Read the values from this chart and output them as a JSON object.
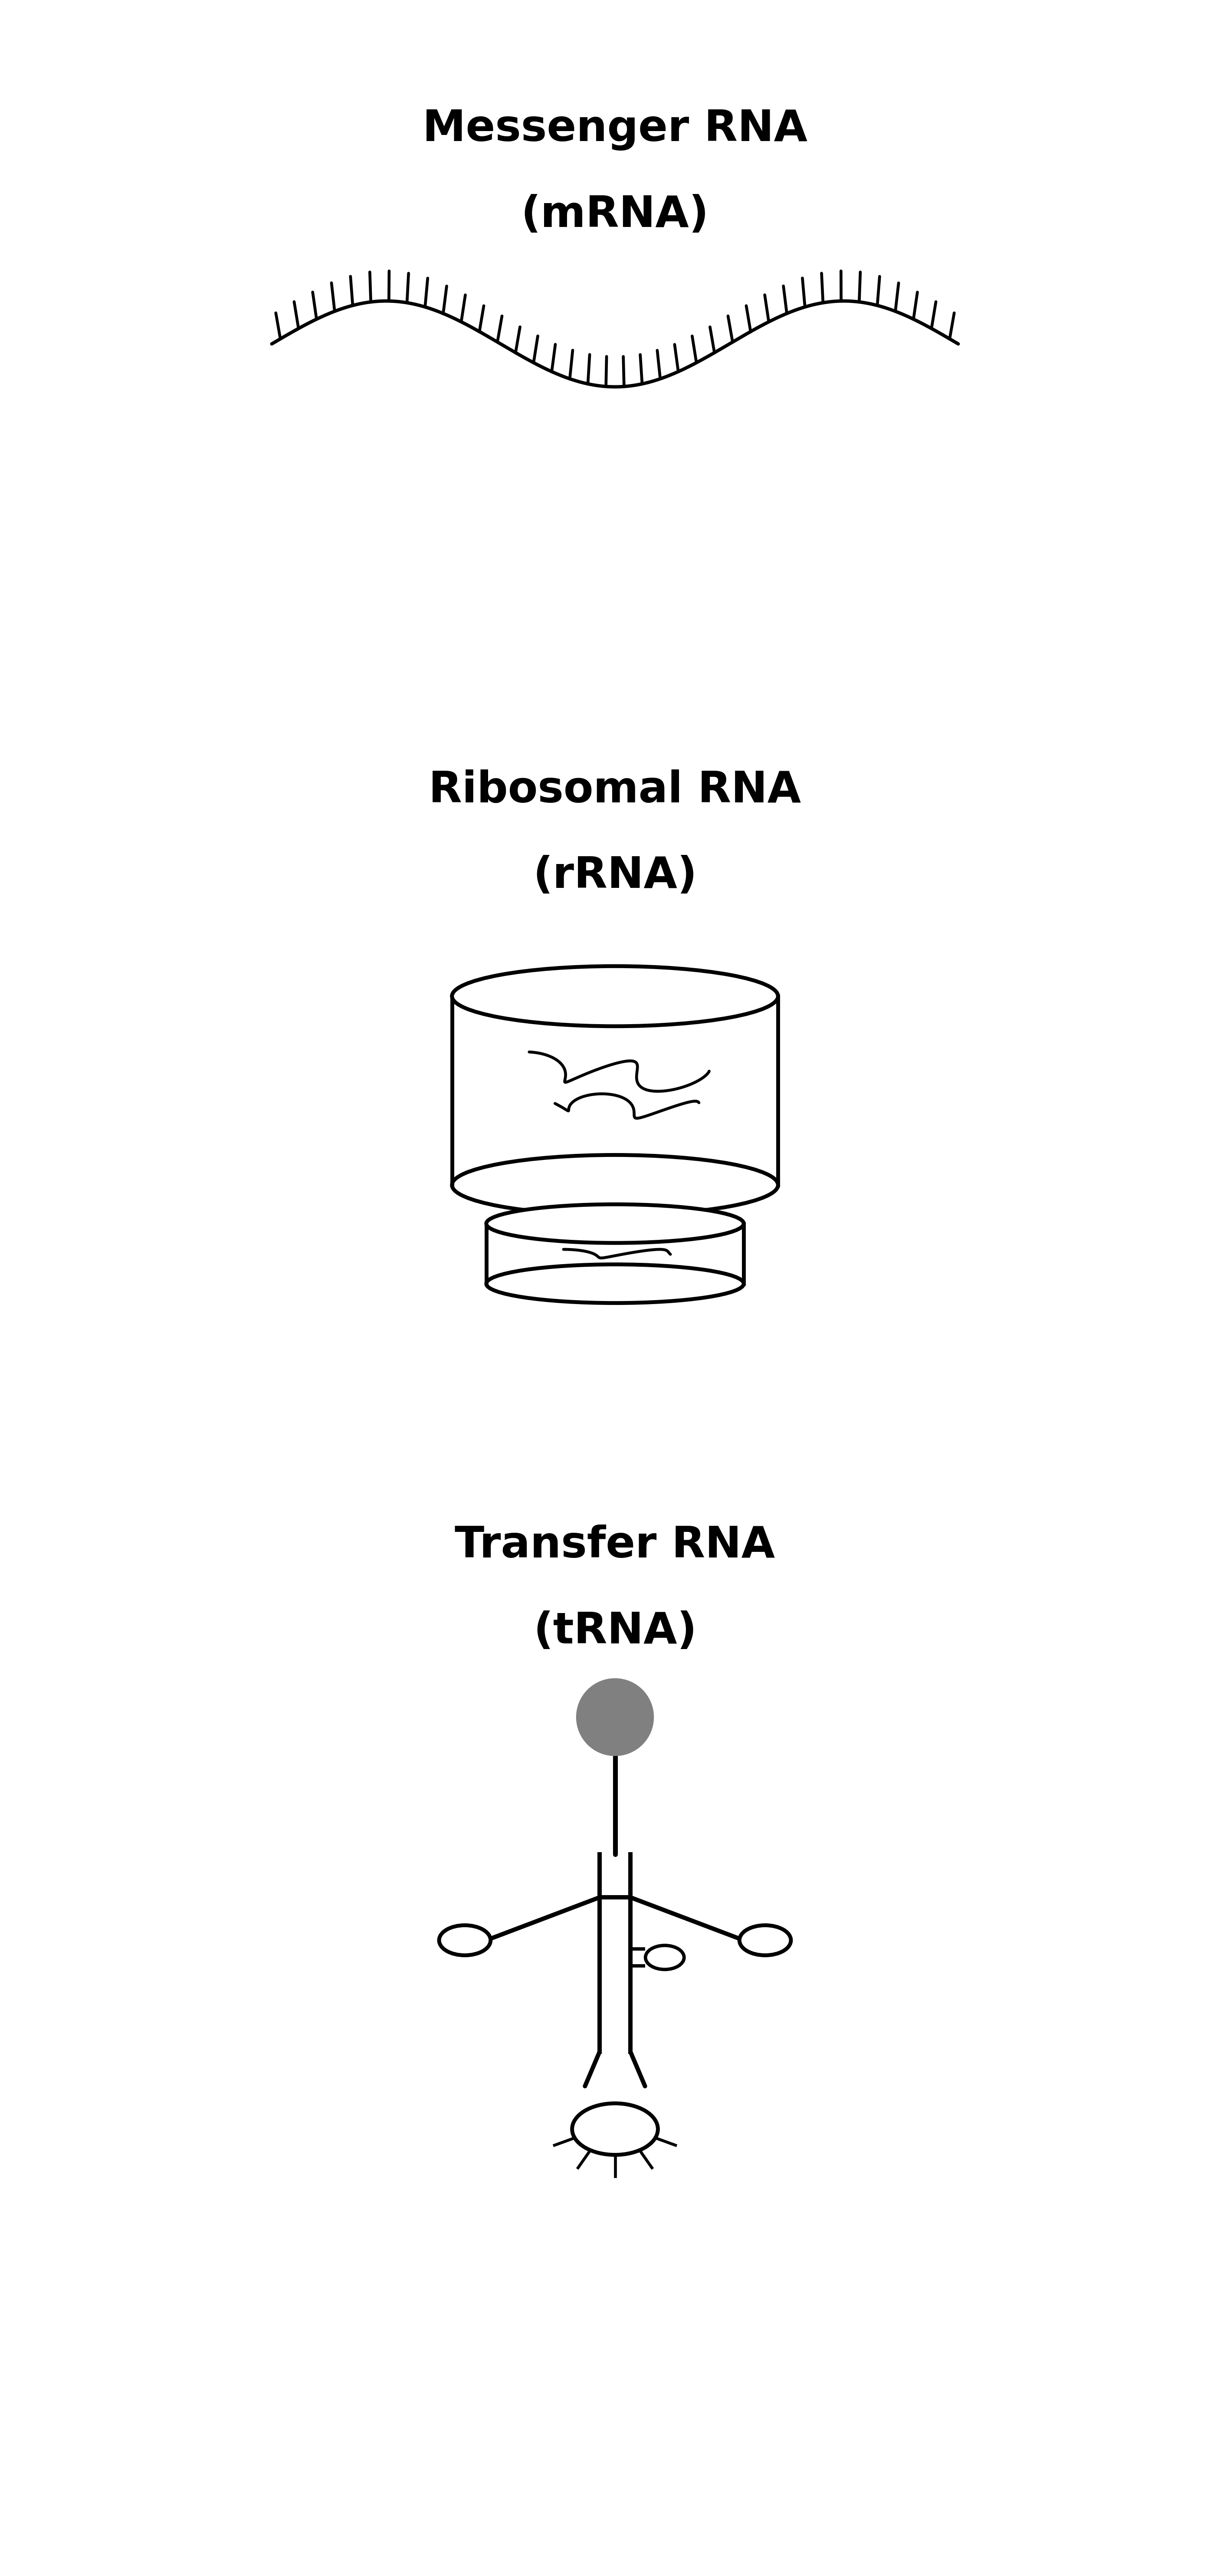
{
  "title1": "Messenger RNA",
  "title1b": "(mRNA)",
  "title2": "Ribosomal RNA",
  "title2b": "(rRNA)",
  "title3": "Transfer RNA",
  "title3b": "(tRNA)",
  "bg_color": "#ffffff",
  "text_color": "#000000",
  "line_color": "#000000",
  "title_fontsize": 72,
  "subtitle_fontsize": 72,
  "line_width": 8,
  "fig_width": 28.35,
  "fig_height": 59.36
}
